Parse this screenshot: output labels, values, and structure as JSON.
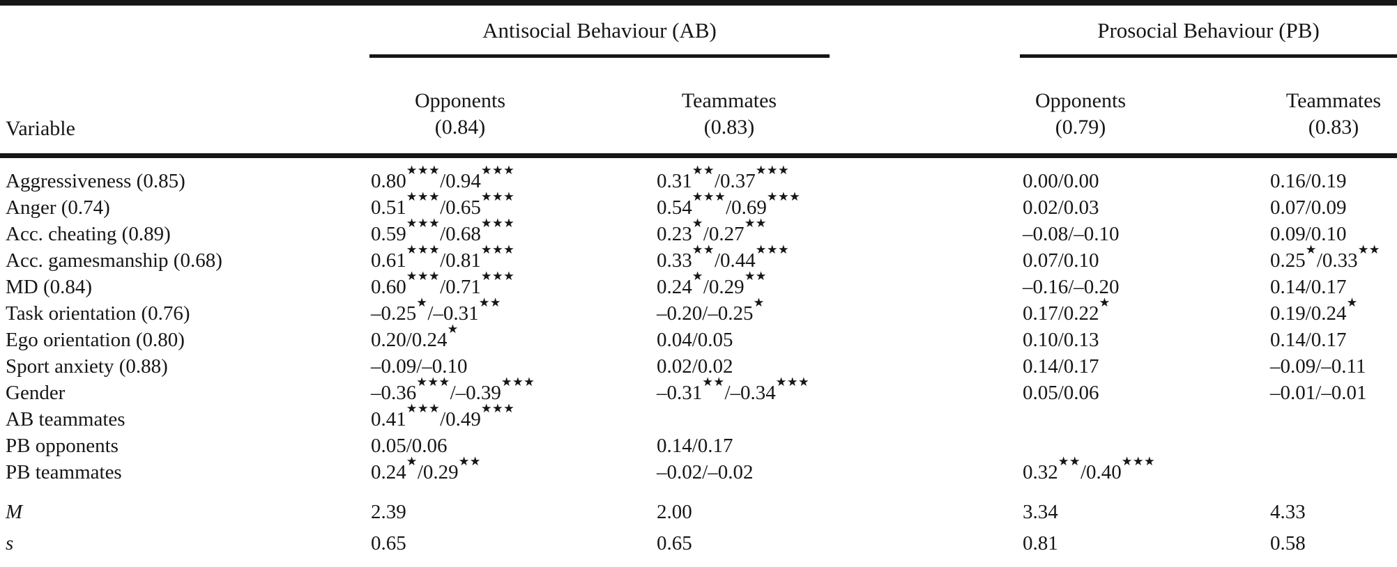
{
  "table": {
    "variable_header": "Variable",
    "groups": [
      {
        "label": "Antisocial Behaviour (AB)",
        "columns": [
          {
            "name": "Opponents",
            "alpha": "(0.84)"
          },
          {
            "name": "Teammates",
            "alpha": "(0.83)"
          }
        ]
      },
      {
        "label": "Prosocial Behaviour (PB)",
        "columns": [
          {
            "name": "Opponents",
            "alpha": "(0.79)"
          },
          {
            "name": "Teammates",
            "alpha": "(0.83)"
          }
        ]
      }
    ],
    "rows": [
      {
        "variable": "Aggressiveness (0.85)",
        "cells": [
          "0.80★★★/0.94★★★",
          "0.31★★/0.37★★★",
          "0.00/0.00",
          "0.16/0.19"
        ]
      },
      {
        "variable": "Anger (0.74)",
        "cells": [
          "0.51★★★/0.65★★★",
          "0.54★★★/0.69★★★",
          "0.02/0.03",
          "0.07/0.09"
        ]
      },
      {
        "variable": "Acc. cheating (0.89)",
        "cells": [
          "0.59★★★/0.68★★★",
          "0.23★/0.27★★",
          "–0.08/–0.10",
          "0.09/0.10"
        ]
      },
      {
        "variable": "Acc. gamesmanship (0.68)",
        "cells": [
          "0.61★★★/0.81★★★",
          "0.33★★/0.44★★★",
          "0.07/0.10",
          "0.25★/0.33★★"
        ]
      },
      {
        "variable": "MD (0.84)",
        "cells": [
          "0.60★★★/0.71★★★",
          "0.24★/0.29★★",
          "–0.16/–0.20",
          "0.14/0.17"
        ]
      },
      {
        "variable": "Task orientation (0.76)",
        "cells": [
          "–0.25★/–0.31★★",
          "–0.20/–0.25★",
          "0.17/0.22★",
          "0.19/0.24★"
        ]
      },
      {
        "variable": "Ego orientation (0.80)",
        "cells": [
          "0.20/0.24★",
          "0.04/0.05",
          "0.10/0.13",
          "0.14/0.17"
        ]
      },
      {
        "variable": "Sport anxiety (0.88)",
        "cells": [
          "–0.09/–0.10",
          "0.02/0.02",
          "0.14/0.17",
          "–0.09/–0.11"
        ]
      },
      {
        "variable": "Gender",
        "cells": [
          "–0.36★★★/–0.39★★★",
          "–0.31★★/–0.34★★★",
          "0.05/0.06",
          "–0.01/–0.01"
        ]
      },
      {
        "variable": "AB teammates",
        "cells": [
          "0.41★★★/0.49★★★",
          "",
          "",
          ""
        ]
      },
      {
        "variable": "PB opponents",
        "cells": [
          "0.05/0.06",
          "0.14/0.17",
          "",
          ""
        ]
      },
      {
        "variable": "PB teammates",
        "cells": [
          "0.24★/0.29★★",
          "–0.02/–0.02",
          "0.32★★/0.40★★★",
          ""
        ]
      }
    ],
    "summary_rows": [
      {
        "variable": "M",
        "cells": [
          "2.39",
          "2.00",
          "3.34",
          "4.33"
        ]
      },
      {
        "variable": "s",
        "cells": [
          "0.65",
          "0.65",
          "0.81",
          "0.58"
        ]
      }
    ],
    "significance_marker": "★",
    "text_color": "#161616",
    "rule_color": "#161616"
  }
}
